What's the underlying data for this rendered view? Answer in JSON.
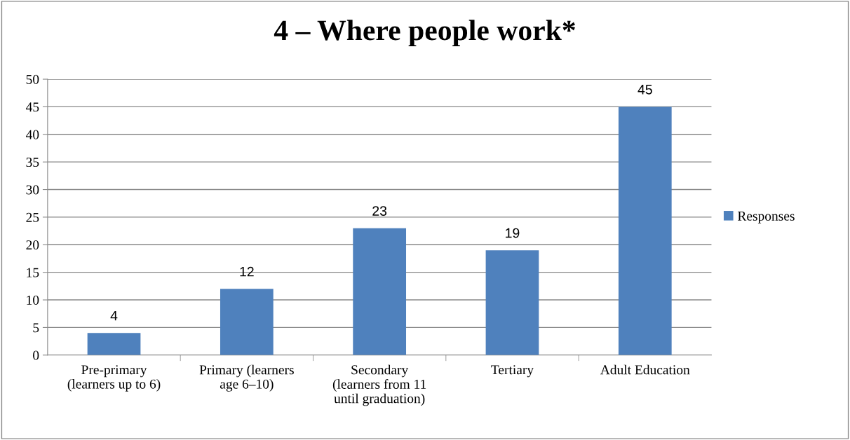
{
  "chart_data": {
    "type": "bar",
    "title": "4 – Where people work*",
    "categories": [
      "Pre-primary\n(learners up to 6)",
      "Primary (learners\nage 6–10)",
      "Secondary\n(learners from 11\nuntil graduation)",
      "Tertiary",
      "Adult Education"
    ],
    "series": [
      {
        "name": "Responses",
        "color": "#4f81bd",
        "values": [
          4,
          12,
          23,
          19,
          45
        ]
      }
    ],
    "ylim": [
      0,
      50
    ],
    "yticks": [
      0,
      5,
      10,
      15,
      20,
      25,
      30,
      35,
      40,
      45,
      50
    ],
    "grid": "y",
    "legend": "right",
    "data_labels": true
  }
}
